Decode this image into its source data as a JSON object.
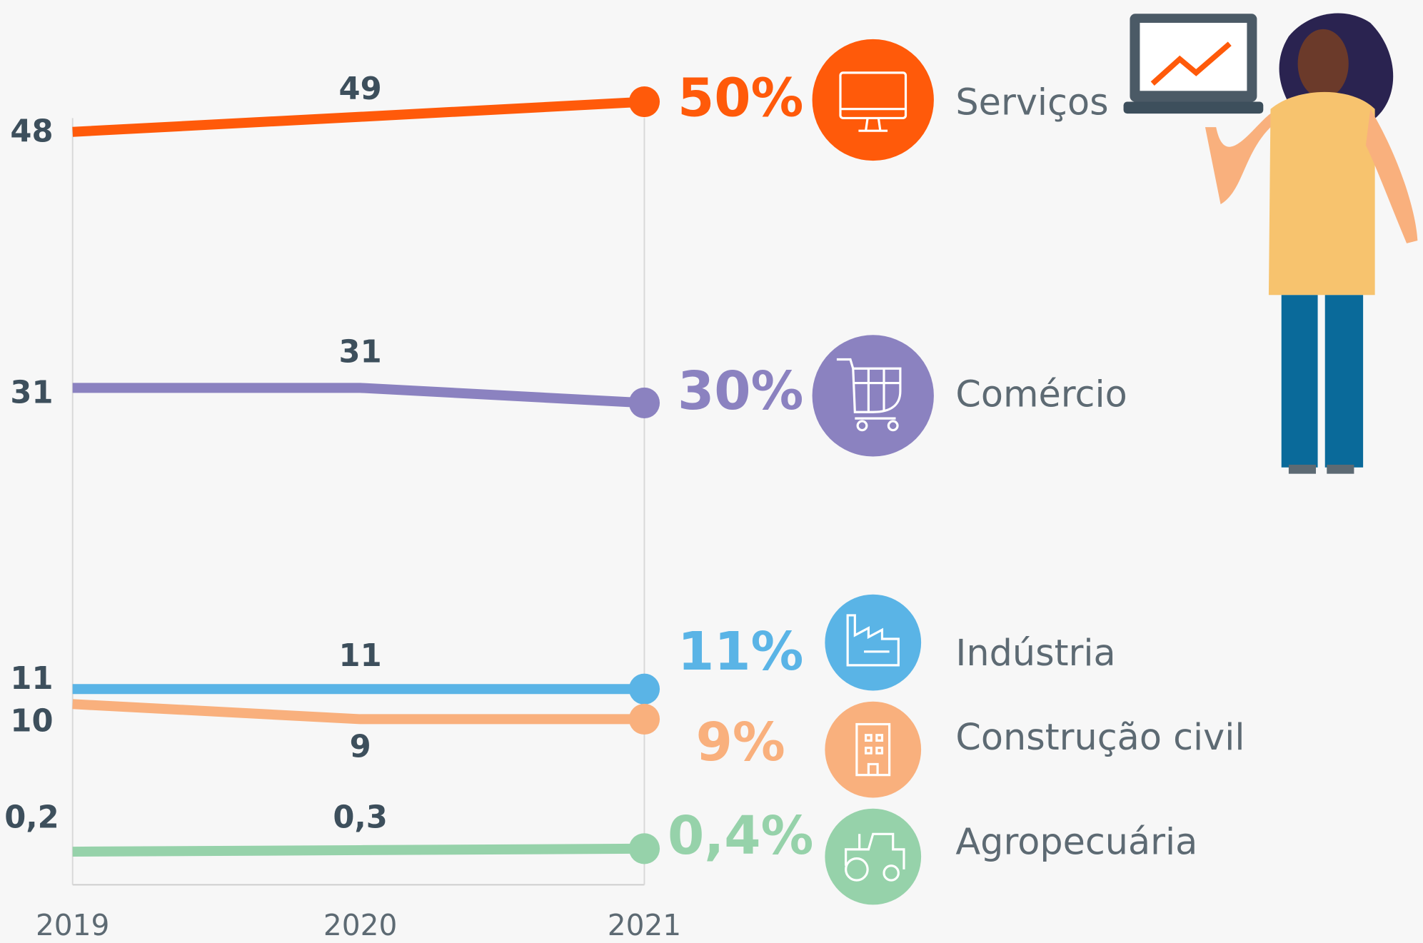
{
  "chart_data": {
    "type": "line",
    "categories": [
      "2019",
      "2020",
      "2021"
    ],
    "ylim": [
      -2,
      50
    ],
    "series": [
      {
        "name": "Serviços",
        "color": "#ff5a0a",
        "values": [
          48,
          49,
          50
        ],
        "value_labels": [
          "48",
          "49",
          "50%"
        ]
      },
      {
        "name": "Comércio",
        "color": "#8b82c0",
        "values": [
          31,
          31,
          30
        ],
        "value_labels": [
          "31",
          "31",
          "30%"
        ]
      },
      {
        "name": "Indústria",
        "color": "#5ab4e6",
        "values": [
          11,
          11,
          11
        ],
        "value_labels": [
          "11",
          "11",
          "11%"
        ]
      },
      {
        "name": "Construção civil",
        "color": "#f9b07d",
        "values": [
          10,
          9,
          9
        ],
        "value_labels": [
          "10",
          "9",
          "9%"
        ]
      },
      {
        "name": "Agropecuária",
        "color": "#96d2aa",
        "values": [
          0.2,
          0.3,
          0.4
        ],
        "value_labels": [
          "0,2",
          "0,3",
          "0,4%"
        ]
      }
    ]
  }
}
